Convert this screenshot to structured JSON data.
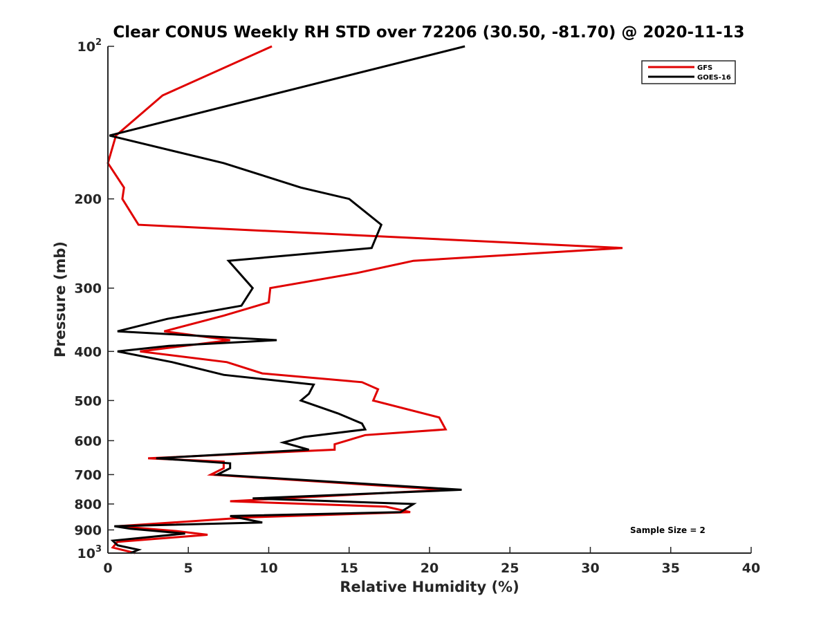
{
  "chart_data": {
    "type": "line",
    "title": "Clear CONUS Weekly RH STD over 72206 (30.50, -81.70) @ 2020-11-13",
    "xlabel": "Relative Humidity (%)",
    "ylabel": "Pressure (mb)",
    "xlim": [
      0,
      40
    ],
    "ylim": [
      100,
      1000
    ],
    "y_scale": "log",
    "y_reversed": true,
    "x_ticks": [
      "0",
      "5",
      "10",
      "15",
      "20",
      "25",
      "30",
      "35",
      "40"
    ],
    "y_tick_values": [
      100,
      200,
      300,
      400,
      500,
      600,
      700,
      800,
      900,
      1000
    ],
    "y_tick_labels": [
      "10^2",
      "200",
      "300",
      "400",
      "500",
      "600",
      "700",
      "800",
      "900",
      "10^3"
    ],
    "grid": false,
    "legend_position": "top-right",
    "annotation": "Sample Size = 2",
    "series": [
      {
        "name": "GFS",
        "color": "#e00000",
        "points": [
          [
            10.2,
            100
          ],
          [
            3.4,
            125
          ],
          [
            0.5,
            150
          ],
          [
            0.0,
            170
          ],
          [
            1.0,
            190
          ],
          [
            0.9,
            200
          ],
          [
            1.9,
            225
          ],
          [
            32.0,
            250
          ],
          [
            19.0,
            265
          ],
          [
            15.5,
            280
          ],
          [
            10.1,
            300
          ],
          [
            10.0,
            320
          ],
          [
            7.2,
            340
          ],
          [
            3.5,
            365
          ],
          [
            7.6,
            380
          ],
          [
            2.0,
            400
          ],
          [
            7.4,
            420
          ],
          [
            9.6,
            442
          ],
          [
            15.8,
            460
          ],
          [
            16.8,
            475
          ],
          [
            16.5,
            500
          ],
          [
            20.6,
            540
          ],
          [
            21.0,
            570
          ],
          [
            16.0,
            585
          ],
          [
            14.1,
            610
          ],
          [
            14.1,
            625
          ],
          [
            2.5,
            650
          ],
          [
            7.2,
            660
          ],
          [
            7.2,
            680
          ],
          [
            6.4,
            700
          ],
          [
            21.0,
            750
          ],
          [
            7.6,
            790
          ],
          [
            17.3,
            810
          ],
          [
            18.8,
            830
          ],
          [
            8.8,
            850
          ],
          [
            0.6,
            885
          ],
          [
            4.3,
            905
          ],
          [
            6.2,
            920
          ],
          [
            0.6,
            950
          ],
          [
            0.3,
            975
          ],
          [
            1.7,
            1000
          ]
        ]
      },
      {
        "name": "GOES-16",
        "color": "#000000",
        "points": [
          [
            22.2,
            100
          ],
          [
            10.0,
            125
          ],
          [
            0.1,
            150
          ],
          [
            7.2,
            170
          ],
          [
            12.0,
            190
          ],
          [
            15.0,
            200
          ],
          [
            17.0,
            225
          ],
          [
            16.4,
            250
          ],
          [
            7.5,
            265
          ],
          [
            9.0,
            300
          ],
          [
            8.3,
            325
          ],
          [
            3.7,
            345
          ],
          [
            0.6,
            365
          ],
          [
            10.5,
            380
          ],
          [
            3.8,
            390
          ],
          [
            0.6,
            400
          ],
          [
            4.0,
            420
          ],
          [
            7.2,
            445
          ],
          [
            12.8,
            465
          ],
          [
            12.5,
            485
          ],
          [
            12.0,
            500
          ],
          [
            14.3,
            530
          ],
          [
            15.8,
            555
          ],
          [
            16.0,
            570
          ],
          [
            12.2,
            590
          ],
          [
            10.9,
            605
          ],
          [
            12.5,
            625
          ],
          [
            3.0,
            650
          ],
          [
            7.6,
            665
          ],
          [
            7.6,
            680
          ],
          [
            6.8,
            700
          ],
          [
            22.0,
            750
          ],
          [
            9.0,
            780
          ],
          [
            19.0,
            800
          ],
          [
            18.2,
            830
          ],
          [
            7.6,
            845
          ],
          [
            9.6,
            870
          ],
          [
            0.4,
            885
          ],
          [
            1.4,
            895
          ],
          [
            4.8,
            915
          ],
          [
            0.3,
            945
          ],
          [
            0.6,
            965
          ],
          [
            1.9,
            985
          ],
          [
            1.4,
            1000
          ]
        ]
      }
    ]
  }
}
